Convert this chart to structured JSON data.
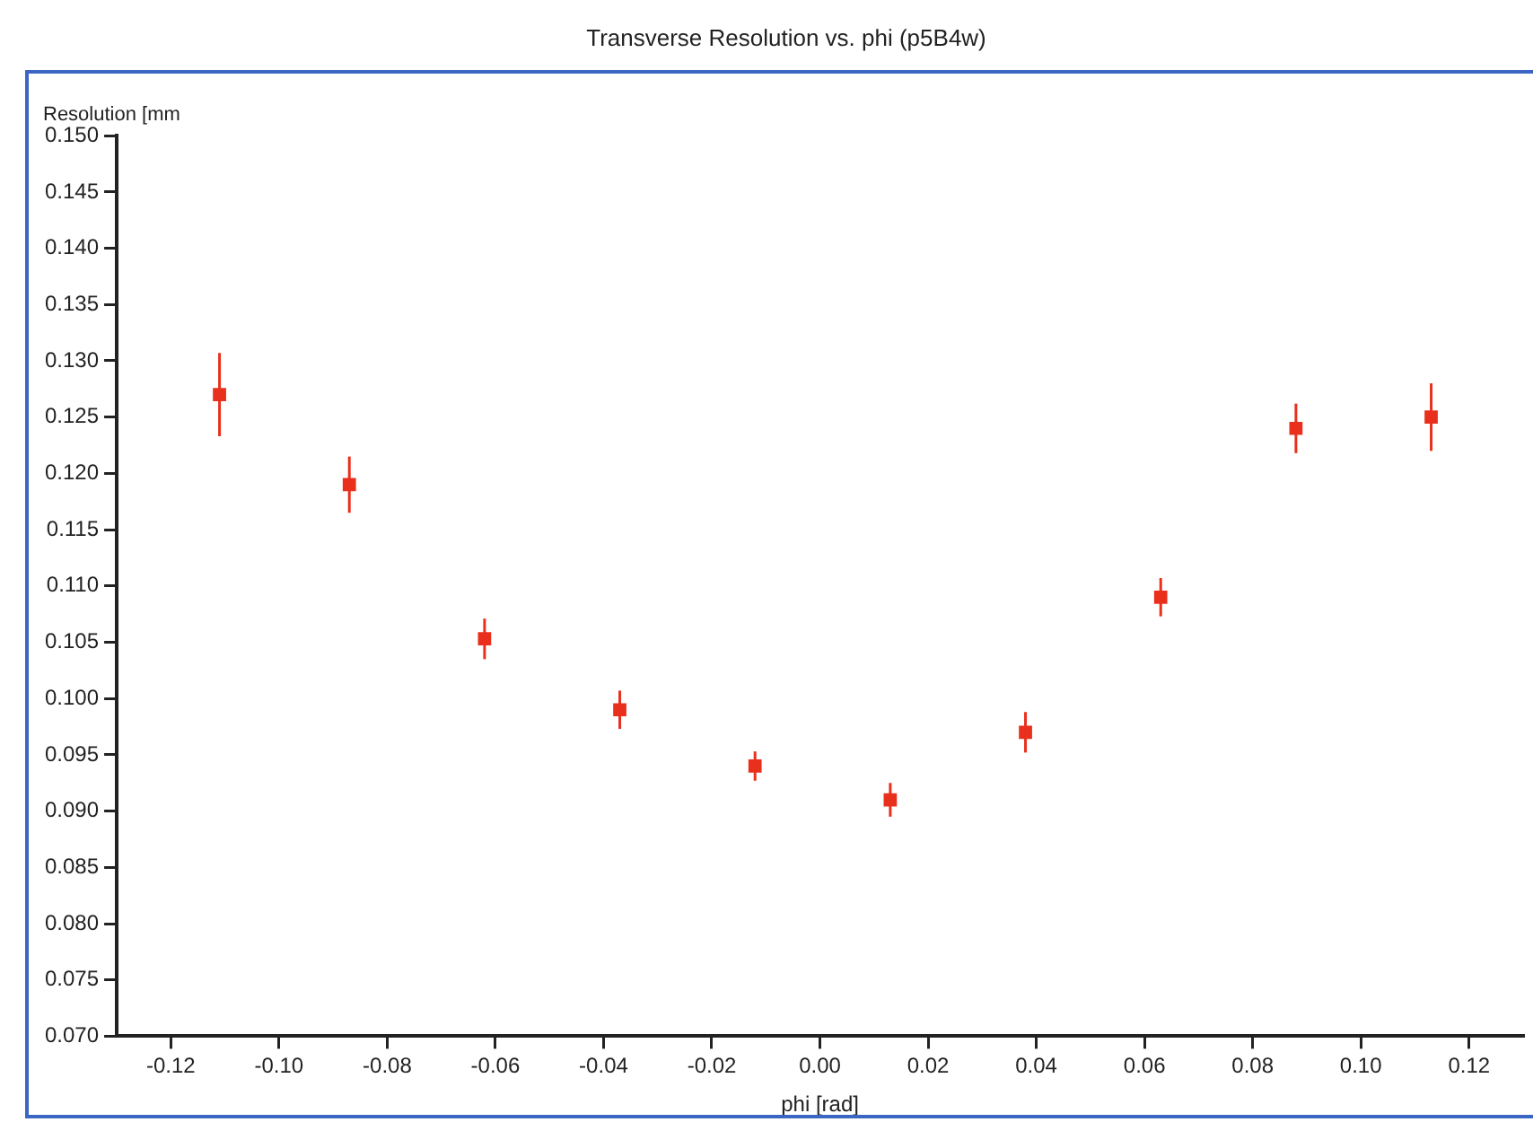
{
  "chart_data": {
    "type": "scatter",
    "title": "Transverse Resolution vs. phi (p5B4w)",
    "xlabel": "phi [rad]",
    "ylabel": "Resolution [mm",
    "x": [
      -0.111,
      -0.087,
      -0.062,
      -0.037,
      -0.012,
      0.013,
      0.038,
      0.063,
      0.088,
      0.113
    ],
    "values": [
      0.127,
      0.119,
      0.1053,
      0.099,
      0.094,
      0.091,
      0.097,
      0.109,
      0.124,
      0.125
    ],
    "errors": [
      0.0037,
      0.0025,
      0.0018,
      0.0017,
      0.0013,
      0.0015,
      0.0018,
      0.0017,
      0.0022,
      0.003
    ],
    "color": "#e8301c",
    "marker": "square",
    "xlim": [
      -0.13,
      0.13
    ],
    "xticks": [
      {
        "value": -0.12,
        "label": "-0.12"
      },
      {
        "value": -0.1,
        "label": "-0.10"
      },
      {
        "value": -0.08,
        "label": "-0.08"
      },
      {
        "value": -0.06,
        "label": "-0.06"
      },
      {
        "value": -0.04,
        "label": "-0.04"
      },
      {
        "value": -0.02,
        "label": "-0.02"
      },
      {
        "value": 0,
        "label": "0.00"
      },
      {
        "value": 0.02,
        "label": "0.02"
      },
      {
        "value": 0.04,
        "label": "0.04"
      },
      {
        "value": 0.06,
        "label": "0.06"
      },
      {
        "value": 0.08,
        "label": "0.08"
      },
      {
        "value": 0.1,
        "label": "0.10"
      },
      {
        "value": 0.12,
        "label": "0.12"
      }
    ],
    "ylim": [
      0.07,
      0.15
    ],
    "yticks": [
      {
        "value": 0.07,
        "label": "0.070"
      },
      {
        "value": 0.075,
        "label": "0.075"
      },
      {
        "value": 0.08,
        "label": "0.080"
      },
      {
        "value": 0.085,
        "label": "0.085"
      },
      {
        "value": 0.09,
        "label": "0.090"
      },
      {
        "value": 0.095,
        "label": "0.095"
      },
      {
        "value": 0.1,
        "label": "0.100"
      },
      {
        "value": 0.105,
        "label": "0.105"
      },
      {
        "value": 0.11,
        "label": "0.110"
      },
      {
        "value": 0.115,
        "label": "0.115"
      },
      {
        "value": 0.12,
        "label": "0.120"
      },
      {
        "value": 0.125,
        "label": "0.125"
      },
      {
        "value": 0.13,
        "label": "0.130"
      },
      {
        "value": 0.135,
        "label": "0.135"
      },
      {
        "value": 0.14,
        "label": "0.140"
      },
      {
        "value": 0.145,
        "label": "0.145"
      },
      {
        "value": 0.15,
        "label": "0.150"
      }
    ],
    "grid": false,
    "legend": false
  }
}
